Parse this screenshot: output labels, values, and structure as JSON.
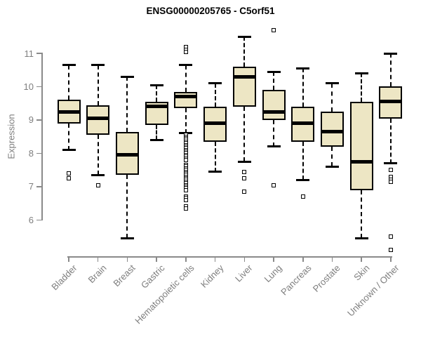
{
  "chart_data": {
    "type": "boxplot",
    "title": "ENSG00000205765 - C5orf51",
    "ylabel": "Expression",
    "xlabel": "",
    "y_ticks": [
      6,
      7,
      8,
      9,
      10,
      11
    ],
    "ylim": [
      5.0,
      11.8
    ],
    "grid": false,
    "legend": "none",
    "box_fill_color": "#EDE6C4",
    "box_line_color": "#000000",
    "axis_color": "#8A8A8A",
    "categories": [
      "Bladder",
      "Brain",
      "Breast",
      "Gastric",
      "Hematopoietic cells",
      "Kidney",
      "Liver",
      "Lung",
      "Pancreas",
      "Prostate",
      "Skin",
      "Unknown / Other"
    ],
    "boxes": [
      {
        "label": "Bladder",
        "whisker_low": 8.1,
        "q1": 8.9,
        "median": 9.25,
        "q3": 9.6,
        "whisker_high": 10.65,
        "outliers": [
          7.4,
          7.25
        ]
      },
      {
        "label": "Brain",
        "whisker_low": 7.35,
        "q1": 8.55,
        "median": 9.05,
        "q3": 9.45,
        "whisker_high": 10.65,
        "outliers": [
          7.05
        ]
      },
      {
        "label": "Breast",
        "whisker_low": 5.45,
        "q1": 7.35,
        "median": 7.95,
        "q3": 8.65,
        "whisker_high": 10.3,
        "outliers": []
      },
      {
        "label": "Gastric",
        "whisker_low": 8.4,
        "q1": 8.85,
        "median": 9.4,
        "q3": 9.55,
        "whisker_high": 10.05,
        "outliers": []
      },
      {
        "label": "Hematopoietic cells",
        "whisker_low": 8.6,
        "q1": 9.35,
        "median": 9.7,
        "q3": 9.85,
        "whisker_high": 10.65,
        "outliers": [
          11.2,
          11.1,
          11.05,
          8.55,
          8.5,
          8.45,
          8.4,
          8.35,
          8.3,
          8.25,
          8.2,
          8.15,
          8.1,
          8.05,
          8.0,
          7.95,
          7.9,
          7.85,
          7.8,
          7.65,
          7.6,
          7.55,
          7.5,
          7.45,
          7.4,
          7.35,
          7.3,
          7.25,
          7.2,
          7.15,
          7.1,
          7.05,
          7.0,
          6.95,
          6.9,
          6.7,
          6.65,
          6.6,
          6.4,
          6.35
        ]
      },
      {
        "label": "Kidney",
        "whisker_low": 7.45,
        "q1": 8.35,
        "median": 8.9,
        "q3": 9.4,
        "whisker_high": 10.1,
        "outliers": []
      },
      {
        "label": "Liver",
        "whisker_low": 7.75,
        "q1": 9.4,
        "median": 10.3,
        "q3": 10.6,
        "whisker_high": 11.5,
        "outliers": [
          7.45,
          7.25,
          6.85
        ]
      },
      {
        "label": "Lung",
        "whisker_low": 8.2,
        "q1": 9.0,
        "median": 9.25,
        "q3": 9.9,
        "whisker_high": 10.45,
        "outliers": [
          11.7,
          7.05
        ]
      },
      {
        "label": "Pancreas",
        "whisker_low": 7.2,
        "q1": 8.35,
        "median": 8.9,
        "q3": 9.4,
        "whisker_high": 10.55,
        "outliers": [
          6.7
        ]
      },
      {
        "label": "Prostate",
        "whisker_low": 7.6,
        "q1": 8.2,
        "median": 8.65,
        "q3": 9.25,
        "whisker_high": 10.1,
        "outliers": []
      },
      {
        "label": "Skin",
        "whisker_low": 5.45,
        "q1": 6.9,
        "median": 7.75,
        "q3": 9.55,
        "whisker_high": 10.4,
        "outliers": []
      },
      {
        "label": "Unknown / Other",
        "whisker_low": 7.7,
        "q1": 9.05,
        "median": 9.55,
        "q3": 10.0,
        "whisker_high": 11.0,
        "outliers": [
          7.5,
          7.3,
          7.2,
          7.15,
          5.5,
          5.1
        ]
      }
    ]
  }
}
